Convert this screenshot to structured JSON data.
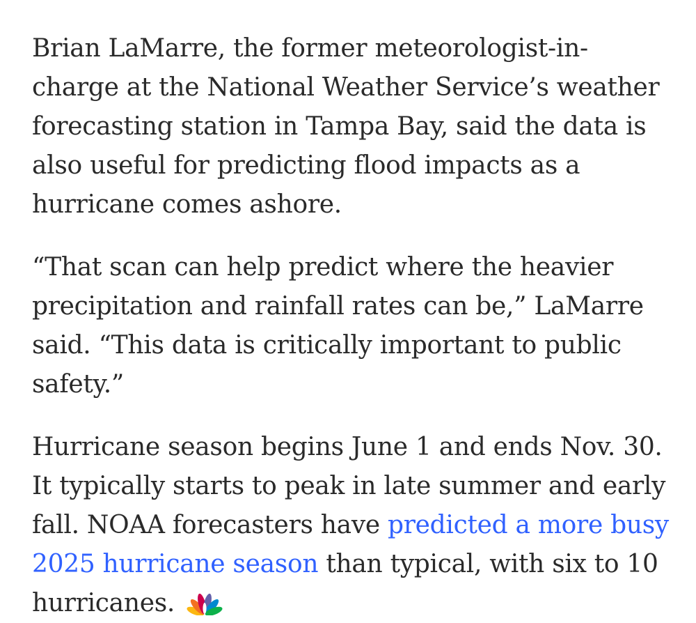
{
  "article": {
    "paragraphs": [
      {
        "text": "Brian LaMarre, the former meteorologist-in-charge at the National Weather Service’s weather forecasting station in Tampa Bay, said the data is also useful for predicting flood impacts as a hurricane comes ashore."
      },
      {
        "text": "“That scan can help predict where the heavier precipitation and rainfall rates can be,” LaMarre said. “This data is critically important to public safety.”"
      },
      {
        "before_link": "Hurricane season begins June 1 and ends Nov. 30. It typically starts to peak in late summer and early fall. NOAA forecasters have ",
        "link_text": "predicted a more busy 2025 hurricane season",
        "after_link": " than typical, with six to 10 hurricanes."
      }
    ]
  },
  "logo": {
    "icon": "nbc-peacock-icon",
    "colors": {
      "yellow": "#fcb711",
      "orange": "#f37021",
      "red": "#cc004c",
      "purple": "#6460aa",
      "blue": "#0089d0",
      "green": "#0db14b"
    }
  },
  "colors": {
    "text": "#2a2a2a",
    "link": "#3061ff",
    "background": "#ffffff"
  }
}
